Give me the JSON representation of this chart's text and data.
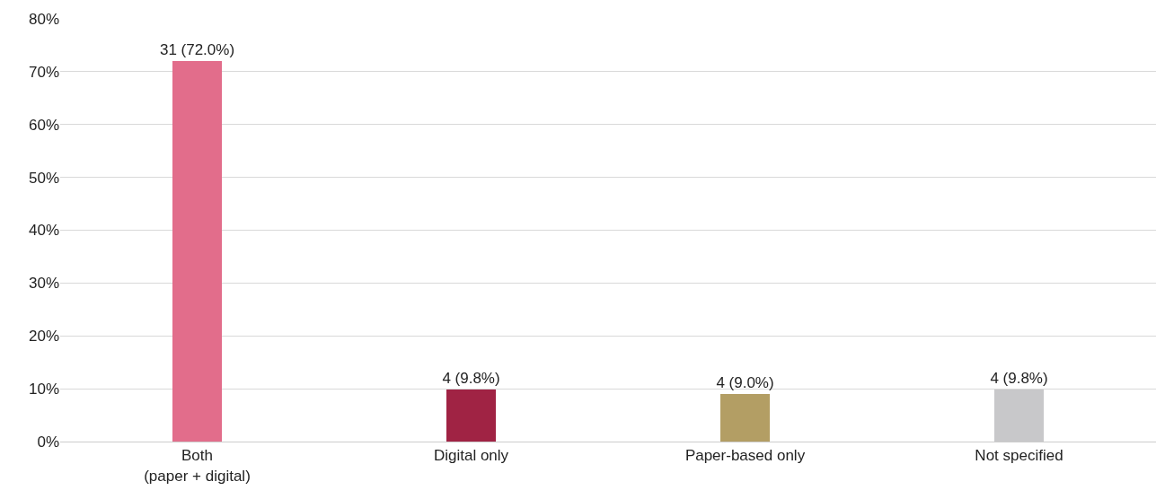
{
  "chart_data": {
    "type": "bar",
    "categories": [
      "Both\n(paper + digital)",
      "Digital only",
      "Paper-based only",
      "Not specified"
    ],
    "values": [
      72.0,
      9.8,
      9.0,
      9.8
    ],
    "colors": [
      "#e26d8b",
      "#a02344",
      "#b39e64",
      "#c8c8ca"
    ],
    "value_labels": [
      "31 (72.0%)",
      "4 (9.8%)",
      "4 (9.0%)",
      "4 (9.8%)"
    ],
    "ylim": [
      0,
      80
    ],
    "yticks": [
      {
        "value": 0,
        "label": "0%"
      },
      {
        "value": 10,
        "label": "10%"
      },
      {
        "value": 20,
        "label": "20%"
      },
      {
        "value": 30,
        "label": "30%"
      },
      {
        "value": 40,
        "label": "40%"
      },
      {
        "value": 50,
        "label": "50%"
      },
      {
        "value": 60,
        "label": "60%"
      },
      {
        "value": 70,
        "label": "70%"
      },
      {
        "value": 80,
        "label": "80%"
      }
    ],
    "grid": "y"
  }
}
